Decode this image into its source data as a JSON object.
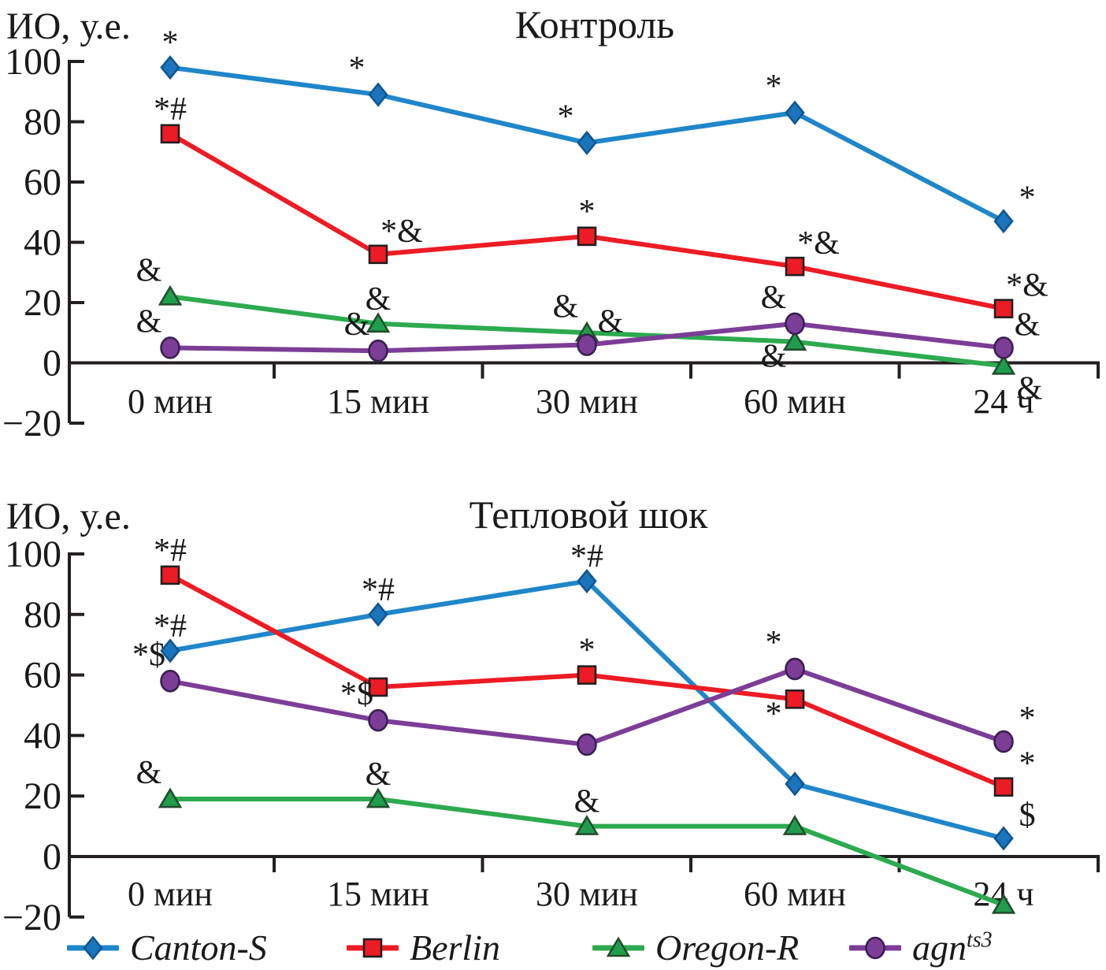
{
  "figure": {
    "background": "#ffffff",
    "text_color": "#1a1a1a",
    "axis_color": "#231F20"
  },
  "legend": {
    "items": [
      {
        "label": "Canton-S",
        "sup": "",
        "marker": "diamond",
        "line_color": "#1F86C9",
        "fill": "#1B75BC",
        "border": "#10568F"
      },
      {
        "label": "Berlin",
        "sup": "",
        "marker": "square",
        "line_color": "#EC1C24",
        "fill": "#EC1C24",
        "border": "#231F20"
      },
      {
        "label": "Oregon-R",
        "sup": "",
        "marker": "triangle",
        "line_color": "#2DAA4F",
        "fill": "#1E9E4C",
        "border": "#234D2E"
      },
      {
        "label": "agn",
        "sup": "ts3",
        "marker": "circle",
        "line_color": "#7C3D97",
        "fill": "#7C3D97",
        "border": "#3A2050"
      }
    ]
  },
  "chart_data": [
    {
      "type": "line",
      "title": "Контроль",
      "ylabel": "ИО, у.е.",
      "ylim": [
        -20,
        100
      ],
      "yticks": [
        100,
        80,
        60,
        40,
        20,
        0,
        -20
      ],
      "grid": false,
      "legend_position": "bottom",
      "categories": [
        "0 мин",
        "15 мин",
        "30 мин",
        "60 мин",
        "24 ч"
      ],
      "series": [
        {
          "name": "Canton-S",
          "marker": "diamond",
          "line_color": "#1F86C9",
          "fill": "#1B75BC",
          "border": "#10568F",
          "values": [
            98,
            89,
            73,
            83,
            47
          ],
          "annotations": [
            "*",
            "*",
            "*",
            "*",
            "*"
          ],
          "ann_pos": [
            "above",
            "above-left",
            "above-left",
            "above-left",
            "above-right"
          ]
        },
        {
          "name": "Berlin",
          "marker": "square",
          "line_color": "#EC1C24",
          "fill": "#EC1C24",
          "border": "#231F20",
          "values": [
            76,
            36,
            42,
            32,
            18
          ],
          "annotations": [
            "*#",
            "*&",
            "*",
            "*&",
            "*&"
          ],
          "ann_pos": [
            "above",
            "above-right",
            "above",
            "above-right",
            "above-right"
          ]
        },
        {
          "name": "Oregon-R",
          "marker": "triangle",
          "line_color": "#2DAA4F",
          "fill": "#1E9E4C",
          "border": "#234D2E",
          "values": [
            22,
            13,
            10,
            7,
            -1
          ],
          "annotations": [
            "&",
            "&",
            "&",
            "&",
            "&"
          ],
          "ann_pos": [
            "above-left",
            "above",
            "above-left",
            "below-left",
            "below-right"
          ]
        },
        {
          "name": "agn ts3",
          "marker": "circle",
          "line_color": "#7C3D97",
          "fill": "#7C3D97",
          "border": "#3A2050",
          "values": [
            5,
            4,
            6,
            13,
            5
          ],
          "annotations": [
            "&",
            "&",
            "&",
            "&",
            "&"
          ],
          "ann_pos": [
            "above-left",
            "above-left",
            "above-right",
            "above-left",
            "above-right"
          ]
        }
      ]
    },
    {
      "type": "line",
      "title": "Тепловой шок",
      "ylabel": "ИО, у.е.",
      "ylim": [
        -20,
        100
      ],
      "yticks": [
        100,
        80,
        60,
        40,
        20,
        0,
        -20
      ],
      "grid": false,
      "legend_position": "bottom",
      "categories": [
        "0 мин",
        "15 мин",
        "30 мин",
        "60 мин",
        "24 ч"
      ],
      "series": [
        {
          "name": "Canton-S",
          "marker": "diamond",
          "line_color": "#1F86C9",
          "fill": "#1B75BC",
          "border": "#10568F",
          "values": [
            68,
            80,
            91,
            24,
            6
          ],
          "annotations": [
            "*#",
            "*#",
            "*#",
            "",
            "$"
          ],
          "ann_pos": [
            "above",
            "above",
            "above",
            "",
            "above-right"
          ]
        },
        {
          "name": "Berlin",
          "marker": "square",
          "line_color": "#EC1C24",
          "fill": "#EC1C24",
          "border": "#231F20",
          "values": [
            93,
            56,
            60,
            52,
            23
          ],
          "annotations": [
            "*#",
            "",
            "*",
            "*",
            "*"
          ],
          "ann_pos": [
            "above",
            "",
            "above",
            "below-left",
            "above-right"
          ]
        },
        {
          "name": "Oregon-R",
          "marker": "triangle",
          "line_color": "#2DAA4F",
          "fill": "#1E9E4C",
          "border": "#234D2E",
          "values": [
            19,
            19,
            10,
            10,
            -16
          ],
          "annotations": [
            "&",
            "&",
            "&",
            "",
            ""
          ],
          "ann_pos": [
            "above-left",
            "above",
            "above",
            "",
            ""
          ]
        },
        {
          "name": "agn ts3",
          "marker": "circle",
          "line_color": "#7C3D97",
          "fill": "#7C3D97",
          "border": "#3A2050",
          "values": [
            58,
            45,
            37,
            62,
            38
          ],
          "annotations": [
            "*$",
            "*$",
            "",
            "*",
            "*"
          ],
          "ann_pos": [
            "above-left",
            "above-left",
            "",
            "above-left",
            "above-right"
          ]
        }
      ]
    }
  ]
}
